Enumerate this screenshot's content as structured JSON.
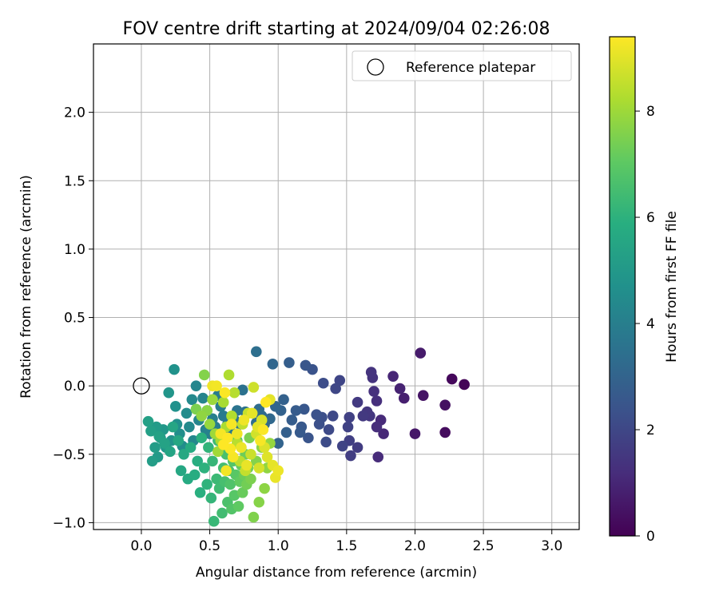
{
  "chart_data": {
    "type": "scatter",
    "title": "FOV centre drift starting at 2024/09/04 02:26:08",
    "xlabel": "Angular distance from reference (arcmin)",
    "ylabel": "Rotation from reference (arcmin)",
    "xlim": [
      -0.35,
      3.2
    ],
    "ylim": [
      -1.05,
      2.5
    ],
    "xticks": [
      0.0,
      0.5,
      1.0,
      1.5,
      2.0,
      2.5,
      3.0
    ],
    "xtick_labels": [
      "0.0",
      "0.5",
      "1.0",
      "1.5",
      "2.0",
      "2.5",
      "3.0"
    ],
    "yticks": [
      -1.0,
      -0.5,
      0.0,
      0.5,
      1.0,
      1.5,
      2.0
    ],
    "ytick_labels": [
      "−1.0",
      "−0.5",
      "0.0",
      "0.5",
      "1.0",
      "1.5",
      "2.0"
    ],
    "grid": true,
    "legend": {
      "location": "upper-right",
      "entries": [
        "Reference platepar"
      ]
    },
    "reference_point": {
      "x": 0.0,
      "y": 0.0,
      "label": "Reference platepar"
    },
    "colorbar": {
      "label": "Hours from first FF file",
      "colormap": "viridis",
      "range": [
        0,
        9.4
      ],
      "ticks": [
        0,
        2,
        4,
        6,
        8
      ],
      "tick_labels": [
        "0",
        "2",
        "4",
        "6",
        "8"
      ]
    },
    "series": [
      {
        "points": [
          [
            2.36,
            0.01,
            0.1
          ],
          [
            2.27,
            0.05,
            0.2
          ],
          [
            2.22,
            -0.34,
            0.3
          ],
          [
            2.22,
            -0.14,
            0.4
          ],
          [
            2.06,
            -0.07,
            0.5
          ],
          [
            2.0,
            -0.35,
            0.6
          ],
          [
            2.04,
            0.24,
            0.7
          ],
          [
            1.92,
            -0.09,
            0.8
          ],
          [
            1.89,
            -0.02,
            0.9
          ],
          [
            1.84,
            0.07,
            1.0
          ],
          [
            1.77,
            -0.35,
            1.05
          ],
          [
            1.75,
            -0.25,
            1.1
          ],
          [
            1.73,
            -0.52,
            1.15
          ],
          [
            1.72,
            -0.3,
            1.2
          ],
          [
            1.72,
            -0.11,
            1.25
          ],
          [
            1.7,
            -0.04,
            1.3
          ],
          [
            1.69,
            0.06,
            1.35
          ],
          [
            1.68,
            0.1,
            1.4
          ],
          [
            1.67,
            -0.22,
            1.45
          ],
          [
            1.65,
            -0.19,
            1.5
          ],
          [
            1.62,
            -0.22,
            1.55
          ],
          [
            1.58,
            -0.12,
            1.6
          ],
          [
            1.58,
            -0.45,
            1.65
          ],
          [
            1.53,
            -0.51,
            1.7
          ],
          [
            1.52,
            -0.4,
            1.75
          ],
          [
            1.52,
            -0.23,
            1.8
          ],
          [
            1.51,
            -0.3,
            1.85
          ],
          [
            1.47,
            -0.44,
            1.9
          ],
          [
            1.45,
            0.04,
            1.95
          ],
          [
            1.42,
            -0.02,
            2.0
          ],
          [
            1.4,
            -0.22,
            2.05
          ],
          [
            1.37,
            -0.32,
            2.1
          ],
          [
            1.35,
            -0.41,
            2.15
          ],
          [
            1.33,
            0.02,
            2.2
          ],
          [
            1.32,
            -0.23,
            2.25
          ],
          [
            1.3,
            -0.28,
            2.3
          ],
          [
            1.28,
            -0.21,
            2.35
          ],
          [
            1.25,
            0.12,
            2.4
          ],
          [
            1.22,
            -0.38,
            2.45
          ],
          [
            1.2,
            0.15,
            2.5
          ],
          [
            1.19,
            -0.17,
            2.55
          ],
          [
            1.17,
            -0.3,
            2.6
          ],
          [
            1.16,
            -0.34,
            2.65
          ],
          [
            1.13,
            -0.18,
            2.7
          ],
          [
            1.1,
            -0.25,
            2.75
          ],
          [
            1.08,
            0.17,
            2.8
          ],
          [
            1.06,
            -0.34,
            2.85
          ],
          [
            1.04,
            -0.1,
            2.9
          ],
          [
            1.02,
            -0.18,
            2.95
          ],
          [
            1.0,
            -0.42,
            3.0
          ],
          [
            0.98,
            -0.15,
            3.05
          ],
          [
            0.96,
            0.16,
            3.1
          ],
          [
            0.94,
            -0.24,
            3.15
          ],
          [
            0.9,
            -0.28,
            3.2
          ],
          [
            0.88,
            -0.22,
            3.25
          ],
          [
            0.86,
            -0.17,
            3.3
          ],
          [
            0.84,
            -0.27,
            3.35
          ],
          [
            0.84,
            0.25,
            3.4
          ],
          [
            0.76,
            -0.19,
            3.45
          ],
          [
            0.74,
            -0.03,
            3.5
          ],
          [
            0.72,
            -0.28,
            3.55
          ],
          [
            0.7,
            -0.18,
            3.6
          ],
          [
            0.68,
            -0.25,
            3.65
          ],
          [
            0.65,
            -0.33,
            3.7
          ],
          [
            0.63,
            -0.28,
            3.75
          ],
          [
            0.6,
            -0.22,
            3.8
          ],
          [
            0.58,
            -0.15,
            3.85
          ],
          [
            0.56,
            -0.07,
            3.9
          ],
          [
            0.54,
            -0.3,
            3.95
          ],
          [
            0.52,
            -0.24,
            4.0
          ],
          [
            0.5,
            -0.35,
            4.05
          ],
          [
            0.48,
            -0.18,
            4.1
          ],
          [
            0.47,
            -0.32,
            4.15
          ],
          [
            0.45,
            -0.09,
            4.2
          ],
          [
            0.42,
            -0.25,
            4.25
          ],
          [
            0.4,
            0.0,
            4.3
          ],
          [
            0.38,
            -0.4,
            4.35
          ],
          [
            0.37,
            -0.1,
            4.4
          ],
          [
            0.35,
            -0.3,
            4.45
          ],
          [
            0.33,
            -0.2,
            4.5
          ],
          [
            0.3,
            -0.44,
            4.55
          ],
          [
            0.28,
            -0.35,
            4.6
          ],
          [
            0.26,
            -0.28,
            4.65
          ],
          [
            0.25,
            -0.15,
            4.7
          ],
          [
            0.24,
            0.12,
            4.75
          ],
          [
            0.22,
            -0.4,
            4.8
          ],
          [
            0.2,
            -0.05,
            4.85
          ],
          [
            0.18,
            -0.45,
            4.9
          ],
          [
            0.16,
            -0.32,
            4.95
          ],
          [
            0.14,
            -0.38,
            5.0
          ],
          [
            0.12,
            -0.52,
            5.05
          ],
          [
            0.11,
            -0.3,
            5.1
          ],
          [
            0.1,
            -0.45,
            5.15
          ],
          [
            0.08,
            -0.55,
            5.2
          ],
          [
            0.07,
            -0.33,
            5.25
          ],
          [
            0.05,
            -0.26,
            5.3
          ],
          [
            0.13,
            -0.37,
            5.35
          ],
          [
            0.17,
            -0.42,
            5.4
          ],
          [
            0.21,
            -0.48,
            5.45
          ],
          [
            0.23,
            -0.3,
            5.5
          ],
          [
            0.27,
            -0.4,
            5.55
          ],
          [
            0.29,
            -0.62,
            5.6
          ],
          [
            0.31,
            -0.5,
            5.65
          ],
          [
            0.34,
            -0.68,
            5.7
          ],
          [
            0.36,
            -0.45,
            5.75
          ],
          [
            0.39,
            -0.65,
            5.8
          ],
          [
            0.41,
            -0.55,
            5.85
          ],
          [
            0.43,
            -0.78,
            5.9
          ],
          [
            0.44,
            -0.38,
            5.95
          ],
          [
            0.46,
            -0.6,
            6.0
          ],
          [
            0.48,
            -0.72,
            6.05
          ],
          [
            0.49,
            -0.45,
            6.1
          ],
          [
            0.51,
            -0.82,
            6.15
          ],
          [
            0.52,
            -0.55,
            6.2
          ],
          [
            0.53,
            -0.99,
            6.25
          ],
          [
            0.55,
            -0.68,
            6.3
          ],
          [
            0.56,
            -0.4,
            6.35
          ],
          [
            0.57,
            -0.75,
            6.4
          ],
          [
            0.59,
            -0.93,
            6.45
          ],
          [
            0.6,
            -0.6,
            6.5
          ],
          [
            0.61,
            -0.7,
            6.55
          ],
          [
            0.62,
            -0.5,
            6.6
          ],
          [
            0.63,
            -0.85,
            6.65
          ],
          [
            0.64,
            -0.62,
            6.7
          ],
          [
            0.65,
            -0.72,
            6.75
          ],
          [
            0.66,
            -0.9,
            6.8
          ],
          [
            0.67,
            -0.55,
            6.85
          ],
          [
            0.68,
            -0.8,
            6.9
          ],
          [
            0.69,
            -0.65,
            6.95
          ],
          [
            0.7,
            -0.4,
            7.0
          ],
          [
            0.71,
            -0.88,
            7.05
          ],
          [
            0.72,
            -0.7,
            7.1
          ],
          [
            0.73,
            -0.58,
            7.15
          ],
          [
            0.74,
            -0.78,
            7.2
          ],
          [
            0.75,
            -0.65,
            7.25
          ],
          [
            0.76,
            -0.5,
            7.3
          ],
          [
            0.77,
            -0.72,
            7.35
          ],
          [
            0.78,
            -0.6,
            7.4
          ],
          [
            0.79,
            -0.38,
            7.45
          ],
          [
            0.8,
            -0.68,
            7.5
          ],
          [
            0.82,
            -0.96,
            7.55
          ],
          [
            0.84,
            -0.55,
            7.6
          ],
          [
            0.86,
            -0.85,
            7.65
          ],
          [
            0.88,
            -0.45,
            7.7
          ],
          [
            0.9,
            -0.75,
            7.75
          ],
          [
            0.92,
            -0.6,
            7.8
          ],
          [
            0.94,
            -0.42,
            7.85
          ],
          [
            0.5,
            -0.28,
            7.9
          ],
          [
            0.52,
            -0.1,
            7.95
          ],
          [
            0.54,
            -0.35,
            8.0
          ],
          [
            0.46,
            0.08,
            7.6
          ],
          [
            0.48,
            -0.18,
            7.7
          ],
          [
            0.44,
            -0.22,
            7.8
          ],
          [
            0.4,
            -0.17,
            7.5
          ],
          [
            0.56,
            -0.48,
            8.05
          ],
          [
            0.58,
            -0.4,
            8.1
          ],
          [
            0.6,
            -0.12,
            8.15
          ],
          [
            0.62,
            -0.3,
            8.2
          ],
          [
            0.64,
            0.08,
            8.25
          ],
          [
            0.66,
            -0.22,
            8.3
          ],
          [
            0.68,
            -0.05,
            8.35
          ],
          [
            0.7,
            -0.42,
            8.4
          ],
          [
            0.72,
            -0.55,
            8.45
          ],
          [
            0.74,
            -0.28,
            8.5
          ],
          [
            0.76,
            -0.62,
            8.55
          ],
          [
            0.78,
            -0.2,
            8.6
          ],
          [
            0.8,
            -0.5,
            8.65
          ],
          [
            0.82,
            -0.01,
            8.7
          ],
          [
            0.84,
            -0.35,
            8.75
          ],
          [
            0.86,
            -0.6,
            8.8
          ],
          [
            0.88,
            -0.25,
            8.85
          ],
          [
            0.9,
            -0.45,
            8.9
          ],
          [
            0.92,
            -0.52,
            8.95
          ],
          [
            0.94,
            -0.1,
            9.0
          ],
          [
            0.96,
            -0.58,
            9.05
          ],
          [
            0.98,
            -0.67,
            9.1
          ],
          [
            1.0,
            -0.62,
            9.15
          ],
          [
            0.52,
            0.0,
            9.2
          ],
          [
            0.55,
            0.0,
            9.25
          ],
          [
            0.58,
            -0.35,
            9.3
          ],
          [
            0.61,
            -0.05,
            9.35
          ],
          [
            0.63,
            -0.38,
            9.4
          ],
          [
            0.65,
            -0.46,
            9.35
          ],
          [
            0.67,
            -0.52,
            9.3
          ],
          [
            0.62,
            -0.62,
            9.25
          ],
          [
            0.7,
            -0.35,
            9.2
          ],
          [
            0.73,
            -0.45,
            9.15
          ],
          [
            0.77,
            -0.58,
            9.1
          ],
          [
            0.81,
            -0.2,
            9.05
          ],
          [
            0.85,
            -0.3,
            9.0
          ],
          [
            0.87,
            -0.4,
            9.3
          ],
          [
            0.89,
            -0.32,
            9.35
          ],
          [
            0.91,
            -0.12,
            9.4
          ],
          [
            0.6,
            -0.43,
            9.4
          ],
          [
            0.66,
            -0.28,
            9.3
          ],
          [
            0.75,
            -0.25,
            9.2
          ]
        ]
      }
    ]
  }
}
